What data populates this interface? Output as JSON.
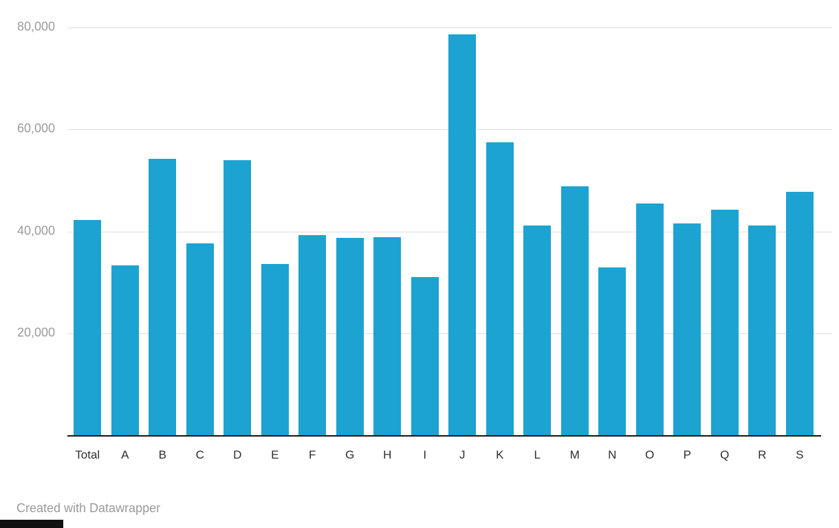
{
  "chart_data": {
    "type": "bar",
    "title": "",
    "xlabel": "",
    "ylabel": "",
    "categories": [
      "Total",
      "A",
      "B",
      "C",
      "D",
      "E",
      "F",
      "G",
      "H",
      "I",
      "J",
      "K",
      "L",
      "M",
      "N",
      "O",
      "P",
      "Q",
      "R",
      "S"
    ],
    "values": [
      42200,
      33300,
      54300,
      37600,
      54000,
      33600,
      39200,
      38700,
      38900,
      31000,
      78600,
      57500,
      41200,
      48800,
      32900,
      45400,
      41600,
      44200,
      41200,
      47700
    ],
    "ylim": [
      0,
      80000
    ],
    "yticks": [
      {
        "value": 20000,
        "label": "20,000"
      },
      {
        "value": 40000,
        "label": "40,000"
      },
      {
        "value": 60000,
        "label": "60,000"
      },
      {
        "value": 80000,
        "label": "80,000"
      }
    ],
    "grid": true,
    "legend_position": "none",
    "bar_color": "#1ca3d1",
    "gridline_color": "#dedede",
    "axis_line_color": "#141414"
  },
  "footer": {
    "credit": "Created with Datawrapper"
  }
}
